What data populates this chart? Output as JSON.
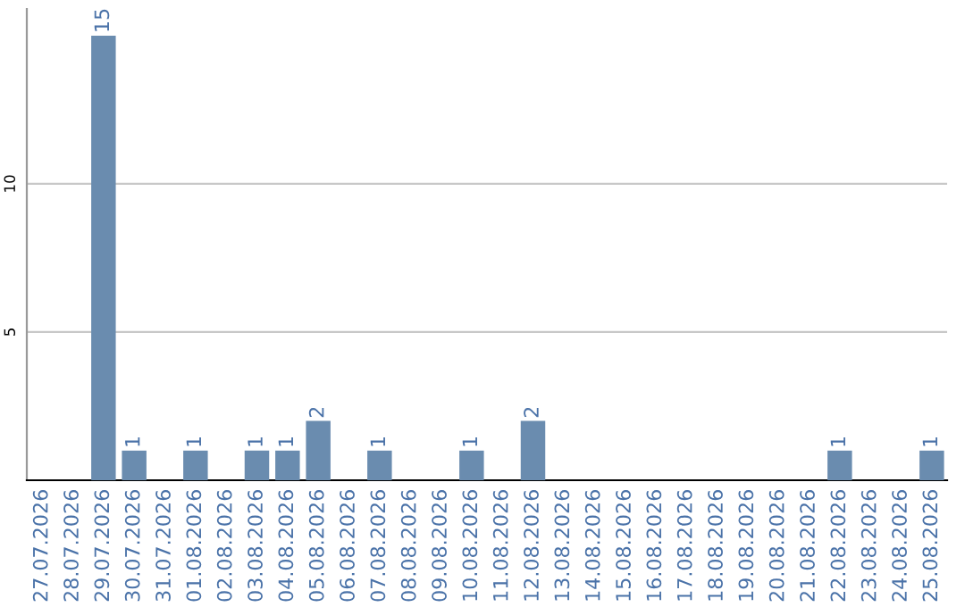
{
  "chart_data": {
    "type": "bar",
    "categories": [
      "27.07.2026",
      "28.07.2026",
      "29.07.2026",
      "30.07.2026",
      "31.07.2026",
      "01.08.2026",
      "02.08.2026",
      "03.08.2026",
      "04.08.2026",
      "05.08.2026",
      "06.08.2026",
      "07.08.2026",
      "08.08.2026",
      "09.08.2026",
      "10.08.2026",
      "11.08.2026",
      "12.08.2026",
      "13.08.2026",
      "14.08.2026",
      "15.08.2026",
      "16.08.2026",
      "17.08.2026",
      "18.08.2026",
      "19.08.2026",
      "20.08.2026",
      "21.08.2026",
      "22.08.2026",
      "23.08.2026",
      "24.08.2026",
      "25.08.2026"
    ],
    "values": [
      0,
      0,
      15,
      1,
      0,
      1,
      0,
      1,
      1,
      2,
      0,
      1,
      0,
      0,
      1,
      0,
      2,
      0,
      0,
      0,
      0,
      0,
      0,
      0,
      0,
      0,
      1,
      0,
      0,
      1
    ],
    "value_labels": [
      null,
      null,
      "15",
      "1",
      null,
      "1",
      null,
      "1",
      "1",
      "2",
      null,
      "1",
      null,
      null,
      "1",
      null,
      "2",
      null,
      null,
      null,
      null,
      null,
      null,
      null,
      null,
      null,
      "1",
      null,
      null,
      "1"
    ],
    "color": "#6a8caf",
    "ylim": [
      0,
      15.9
    ],
    "yticks": [
      5,
      10
    ],
    "grid": "y"
  }
}
